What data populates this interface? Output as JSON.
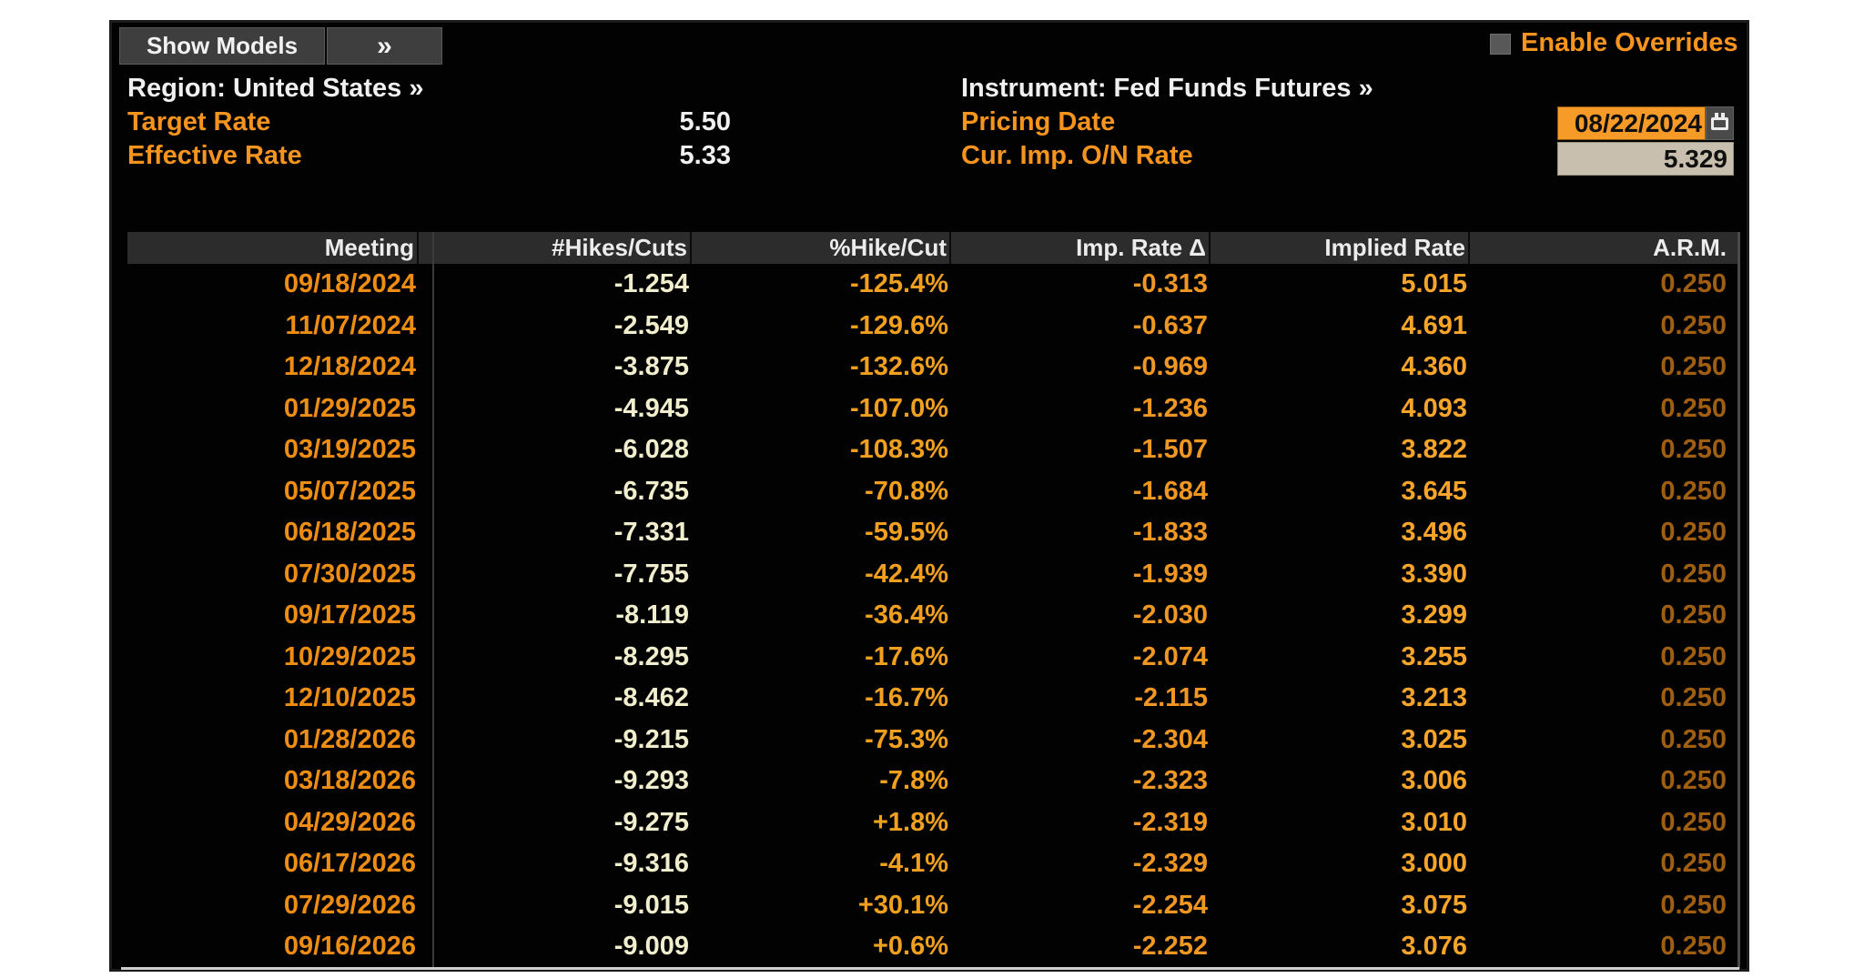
{
  "colors": {
    "orange": "#f5941e",
    "orange-date": "#ee8d13",
    "cream": "#f1eecd",
    "orange-pct": "#f0a01e",
    "orange-imp": "#ef9722",
    "orange-implied": "#f6a52a",
    "orange-dim": "#a05f10",
    "input-orange": "#f79b28",
    "input-tan": "#c8bfae"
  },
  "toolbar": {
    "show_models_label": "Show Models",
    "expand_label": "»",
    "enable_overrides_label": "Enable Overrides"
  },
  "header": {
    "region_label": "Region: United States »",
    "instrument_label": "Instrument: Fed Funds Futures »",
    "target_rate_label": "Target Rate",
    "target_rate_value": "5.50",
    "effective_rate_label": "Effective Rate",
    "effective_rate_value": "5.33",
    "pricing_date_label": "Pricing Date",
    "pricing_date_value": "08/22/2024",
    "cur_imp_rate_label": "Cur. Imp. O/N Rate",
    "cur_imp_rate_value": "5.329",
    "calendar_icon": "calendar-icon"
  },
  "table": {
    "columns": [
      "Meeting",
      "#Hikes/Cuts",
      "%Hike/Cut",
      "Imp. Rate Δ",
      "Implied Rate",
      "A.R.M."
    ],
    "rows": [
      [
        "09/18/2024",
        "-1.254",
        "-125.4%",
        "-0.313",
        "5.015",
        "0.250"
      ],
      [
        "11/07/2024",
        "-2.549",
        "-129.6%",
        "-0.637",
        "4.691",
        "0.250"
      ],
      [
        "12/18/2024",
        "-3.875",
        "-132.6%",
        "-0.969",
        "4.360",
        "0.250"
      ],
      [
        "01/29/2025",
        "-4.945",
        "-107.0%",
        "-1.236",
        "4.093",
        "0.250"
      ],
      [
        "03/19/2025",
        "-6.028",
        "-108.3%",
        "-1.507",
        "3.822",
        "0.250"
      ],
      [
        "05/07/2025",
        "-6.735",
        "-70.8%",
        "-1.684",
        "3.645",
        "0.250"
      ],
      [
        "06/18/2025",
        "-7.331",
        "-59.5%",
        "-1.833",
        "3.496",
        "0.250"
      ],
      [
        "07/30/2025",
        "-7.755",
        "-42.4%",
        "-1.939",
        "3.390",
        "0.250"
      ],
      [
        "09/17/2025",
        "-8.119",
        "-36.4%",
        "-2.030",
        "3.299",
        "0.250"
      ],
      [
        "10/29/2025",
        "-8.295",
        "-17.6%",
        "-2.074",
        "3.255",
        "0.250"
      ],
      [
        "12/10/2025",
        "-8.462",
        "-16.7%",
        "-2.115",
        "3.213",
        "0.250"
      ],
      [
        "01/28/2026",
        "-9.215",
        "-75.3%",
        "-2.304",
        "3.025",
        "0.250"
      ],
      [
        "03/18/2026",
        "-9.293",
        "-7.8%",
        "-2.323",
        "3.006",
        "0.250"
      ],
      [
        "04/29/2026",
        "-9.275",
        "+1.8%",
        "-2.319",
        "3.010",
        "0.250"
      ],
      [
        "06/17/2026",
        "-9.316",
        "-4.1%",
        "-2.329",
        "3.000",
        "0.250"
      ],
      [
        "07/29/2026",
        "-9.015",
        "+30.1%",
        "-2.254",
        "3.075",
        "0.250"
      ],
      [
        "09/16/2026",
        "-9.009",
        "+0.6%",
        "-2.252",
        "3.076",
        "0.250"
      ]
    ]
  }
}
